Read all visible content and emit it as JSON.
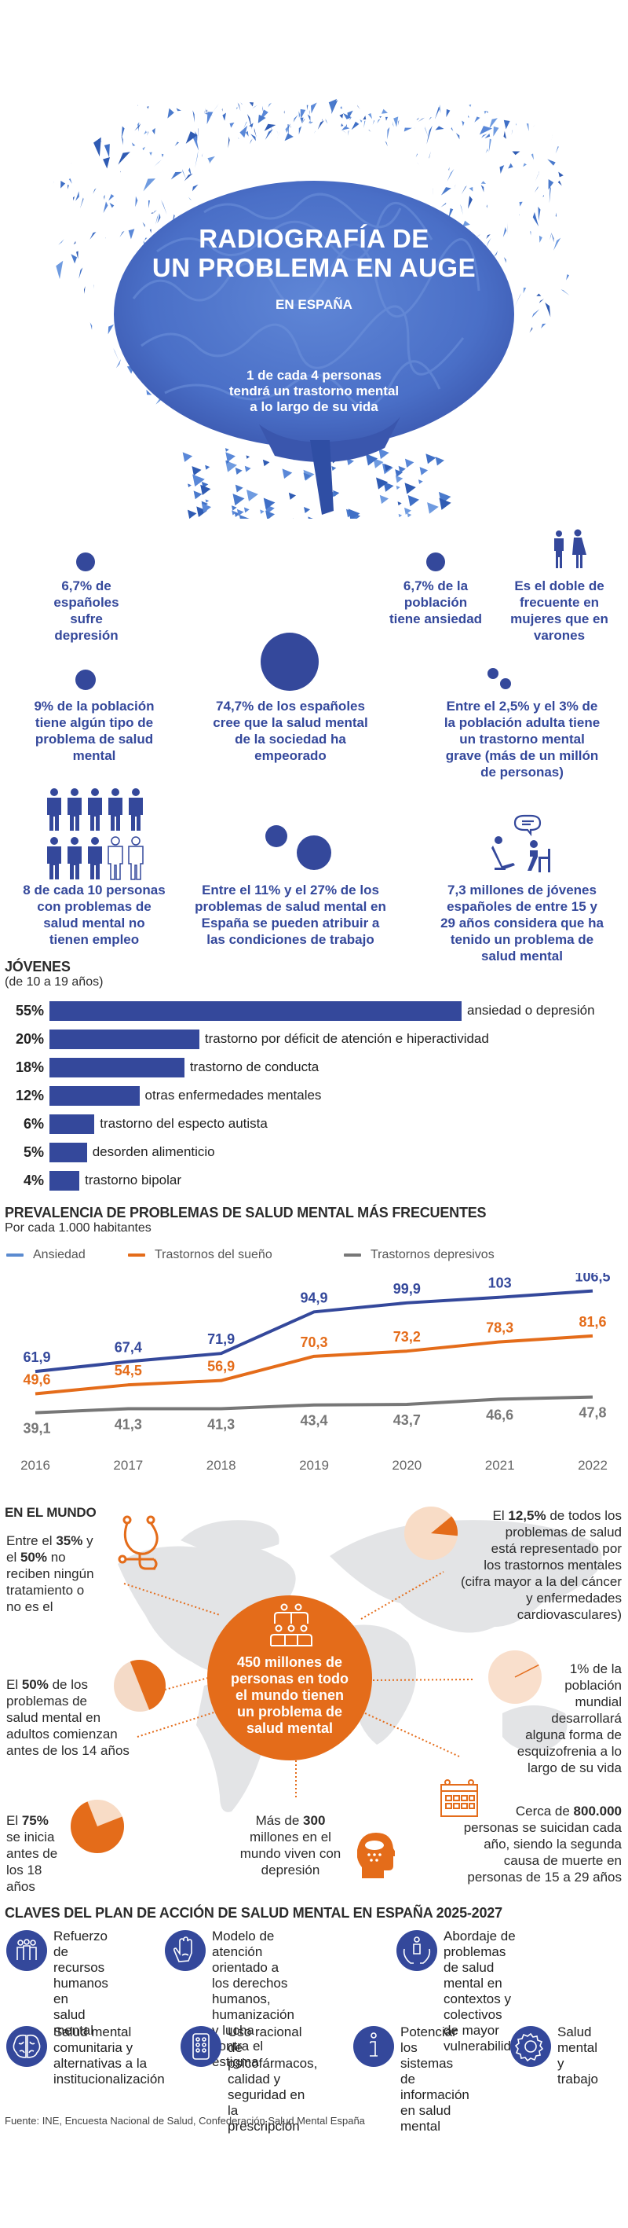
{
  "hero": {
    "title_line1": "RADIOGRAFÍA DE",
    "title_line2": "UN PROBLEMA EN AUGE",
    "subtitle": "EN ESPAÑA",
    "people_icon_ratio": "1 de 4",
    "stat_line1": "1 de cada 4 personas",
    "stat_line2": "tendrá un trastorno mental",
    "stat_line3": "a lo largo de su vida"
  },
  "spain_stats": [
    {
      "id": "depresion",
      "lines": [
        "6,7% de",
        "españoles",
        "sufre",
        "depresión"
      ]
    },
    {
      "id": "ansiedad",
      "lines": [
        "6,7% de la",
        "población",
        "tiene ansiedad"
      ]
    },
    {
      "id": "mujeres",
      "lines": [
        "Es el doble de",
        "frecuente en",
        "mujeres que en",
        "varones"
      ]
    },
    {
      "id": "poblacion",
      "lines": [
        "9% de la población",
        "tiene algún tipo de",
        "problema de salud",
        "mental"
      ]
    },
    {
      "id": "empeorado",
      "lines": [
        "74,7% de los españoles",
        "cree que la salud mental",
        "de la sociedad ha",
        "empeorado"
      ]
    },
    {
      "id": "grave",
      "lines": [
        "Entre el 2,5% y el 3% de",
        "la población adulta tiene",
        "un trastorno mental",
        "grave  (más de un millón",
        "de personas)"
      ]
    },
    {
      "id": "empleo",
      "lines": [
        "8 de cada 10 personas",
        "con problemas de",
        "salud mental no",
        "tienen empleo"
      ]
    },
    {
      "id": "trabajo",
      "lines": [
        "Entre el 11% y el 27% de los",
        "problemas de salud mental en",
        "España se pueden atribuir a",
        "las condiciones de trabajo"
      ]
    },
    {
      "id": "jovenes",
      "lines": [
        "7,3 millones de jóvenes",
        "españoles de entre 15 y",
        "29 años considera que ha",
        "tenido un problema de",
        "salud mental"
      ]
    }
  ],
  "jovenes": {
    "title": "JÓVENES",
    "subtitle": "(de 10 a 19 años)"
  },
  "line_chart_meta": {
    "title": "PREVALENCIA DE PROBLEMAS DE SALUD MENTAL MÁS FRECUENTES",
    "subtitle": "Por cada 1.000 habitantes"
  },
  "mundo": {
    "title": "EN EL MUNDO",
    "tratamiento": {
      "pre1": "Entre el ",
      "b1": "35%",
      "mid1": " y",
      "pre2": "el ",
      "b2": "50%",
      "mid2": " no",
      "rest": [
        "reciben ningún",
        "tratamiento o",
        "no es el"
      ]
    },
    "centro": [
      "450 millones de",
      "personas en todo",
      "el mundo tienen",
      "un problema de",
      "salud mental"
    ],
    "porcentaje_12": {
      "pre": "El ",
      "b": "12,5%",
      "post": " de todos los",
      "rest": [
        "problemas de salud",
        "está representado por",
        "los trastornos mentales",
        "(cifra mayor a la del cáncer",
        "y enfermedades",
        "cardiovasculares)"
      ]
    },
    "adultos": {
      "pre": "El ",
      "b": "50%",
      "post": " de los",
      "rest": [
        "problemas de",
        "salud mental en",
        "adultos comienzan",
        "antes de los 14 años"
      ]
    },
    "esquizofrenia": {
      "lines": [
        "1% de la",
        "población",
        "mundial",
        "desarrollará",
        "alguna forma de",
        "esquizofrenia a lo",
        "largo de su vida"
      ]
    },
    "inicio": {
      "pre": "El ",
      "b": "75%",
      "rest": [
        "se inicia",
        "antes de",
        "los 18 años"
      ]
    },
    "depresion": {
      "pre": "Más de ",
      "b": "300",
      "rest": [
        "millones en el",
        "mundo viven con",
        "depresión"
      ]
    },
    "suicidio": {
      "pre": "Cerca de ",
      "b": "800.000",
      "rest": [
        "personas se suicidan cada",
        "año, siendo la segunda",
        "causa de muerte en",
        "personas de 15 a 29 años"
      ]
    },
    "pie_values": {
      "mental_share_of_health_problems": 12.5,
      "adult_onset_before_14": 50,
      "onset_before_18": 75,
      "schizophrenia": 1
    }
  },
  "claves": {
    "title": "CLAVES DEL PLAN DE ACCIÓN DE SALUD MENTAL EN ESPAÑA 2025-2027",
    "items": [
      {
        "icon": "people-group-icon",
        "lines": [
          "Refuerzo",
          "de recursos",
          "humanos en",
          "salud mental"
        ]
      },
      {
        "icon": "hand-icon",
        "lines": [
          "Modelo de atención",
          "orientado a los derechos",
          "humanos, humanización",
          "y lucha contra el",
          "estigma"
        ]
      },
      {
        "icon": "hands-person-icon",
        "lines": [
          "Abordaje de problemas",
          "de salud mental en",
          "contextos y colectivos",
          "de mayor vulnerabilidad"
        ]
      },
      {
        "icon": "brain-icon",
        "lines": [
          "Salud mental",
          "comunitaria y",
          "alternativas a la",
          "institucionalización"
        ]
      },
      {
        "icon": "pills-icon",
        "lines": [
          "Uso racional de",
          "psicofármacos,",
          "calidad y",
          "seguridad en la",
          "prescripción"
        ]
      },
      {
        "icon": "info-icon",
        "lines": [
          "Potenciar los",
          "sistemas de",
          "información",
          "en salud",
          "mental"
        ]
      },
      {
        "icon": "gear-icon",
        "lines": [
          "Salud",
          "mental y",
          "trabajo"
        ]
      }
    ]
  },
  "source": "Fuente: INE, Encuesta Nacional de Salud, Confederación Salud Mental España",
  "colors": {
    "blue": "#34489b",
    "orange": "#e46c1a",
    "gray": "#777777",
    "light_orange": "#f8dcc6",
    "map_gray": "#e3e4e6"
  },
  "chart_data": [
    {
      "type": "bar",
      "title": "JÓVENES",
      "subtitle": "(de 10 a 19 años)",
      "orientation": "horizontal",
      "categories": [
        "ansiedad o depresión",
        "trastorno por déficit de atención e hiperactividad",
        "trastorno de conducta",
        "otras enfermedades mentales",
        "trastorno del especto autista",
        "desorden alimenticio",
        "trastorno bipolar"
      ],
      "values": [
        55,
        20,
        18,
        12,
        6,
        5,
        4
      ],
      "value_labels": [
        "55%",
        "20%",
        "18%",
        "12%",
        "6%",
        "5%",
        "4%"
      ],
      "unit": "%",
      "xlim": [
        0,
        60
      ]
    },
    {
      "type": "line",
      "title": "PREVALENCIA DE PROBLEMAS DE SALUD MENTAL MÁS FRECUENTES",
      "subtitle": "Por cada 1.000 habitantes",
      "x": [
        "2016",
        "2017",
        "2018",
        "2019",
        "2020",
        "2021",
        "2022"
      ],
      "series": [
        {
          "name": "Ansiedad",
          "color": "#34489b",
          "values": [
            61.9,
            67.4,
            71.9,
            94.9,
            99.9,
            103,
            106.5
          ],
          "labels": [
            "61,9",
            "67,4",
            "71,9",
            "94,9",
            "99,9",
            "103",
            "106,5"
          ]
        },
        {
          "name": "Trastornos del sueño",
          "color": "#e46c1a",
          "values": [
            49.6,
            54.5,
            56.9,
            70.3,
            73.2,
            78.3,
            81.6
          ],
          "labels": [
            "49,6",
            "54,5",
            "56,9",
            "70,3",
            "73,2",
            "78,3",
            "81,6"
          ]
        },
        {
          "name": "Trastornos depresivos",
          "color": "#777777",
          "values": [
            39.1,
            41.3,
            41.3,
            43.4,
            43.7,
            46.6,
            47.8
          ],
          "labels": [
            "39,1",
            "41,3",
            "41,3",
            "43,4",
            "43,7",
            "46,6",
            "47,8"
          ]
        }
      ],
      "legend": "top-left",
      "grid": false,
      "ylim": [
        30,
        110
      ]
    }
  ]
}
